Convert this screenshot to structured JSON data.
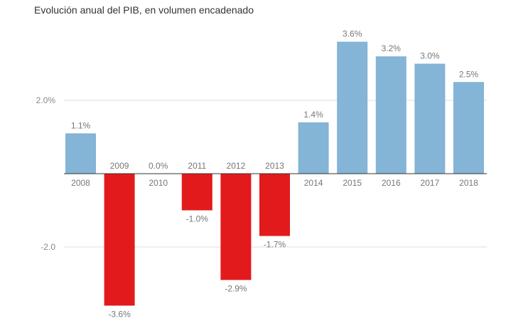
{
  "chart_data": {
    "type": "bar",
    "title": "Evolución anual del PIB, en volumen encadenado",
    "xlabel": "",
    "ylabel": "",
    "categories": [
      "2008",
      "2009",
      "2010",
      "2011",
      "2012",
      "2013",
      "2014",
      "2015",
      "2016",
      "2017",
      "2018"
    ],
    "values": [
      1.1,
      -3.6,
      0.0,
      -1.0,
      -2.9,
      -1.7,
      1.4,
      3.6,
      3.2,
      3.0,
      2.5
    ],
    "value_labels": [
      "1.1%",
      "-3.6%",
      "0.0%",
      "-1.0%",
      "-2.9%",
      "-1.7%",
      "1.4%",
      "3.6%",
      "3.2%",
      "3.0%",
      "2.5%"
    ],
    "yticks": [
      {
        "value": 2.0,
        "label": "2.0%"
      },
      {
        "value": -2.0,
        "label": "-2.0"
      }
    ],
    "ylim": [
      -3.6,
      3.6
    ],
    "grid": true,
    "colors": {
      "positive": "#84b4d6",
      "negative": "#e31a1c"
    }
  }
}
